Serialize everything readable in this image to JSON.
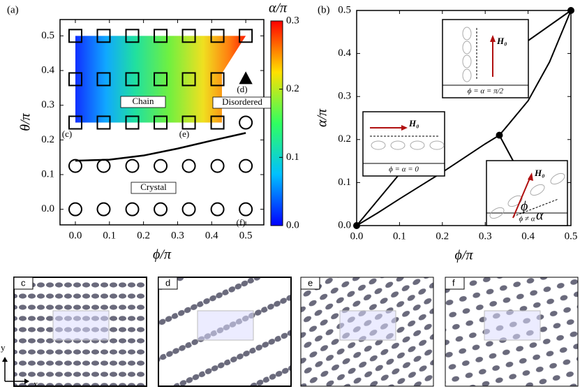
{
  "chart_data": [
    {
      "type": "scatter",
      "panel_label": "(a)",
      "xlabel": "ϕ/π",
      "ylabel": "θ/π",
      "xlim": [
        -0.045,
        0.553
      ],
      "ylim": [
        -0.045,
        0.547
      ],
      "xticks": [
        {
          "value": 0,
          "label": "0.0"
        },
        {
          "value": 0.1,
          "label": "0.1"
        },
        {
          "value": 0.2,
          "label": "0.2"
        },
        {
          "value": 0.3,
          "label": "0.3"
        },
        {
          "value": 0.4,
          "label": "0.4"
        },
        {
          "value": 0.5,
          "label": "0.5"
        }
      ],
      "yticks": [
        {
          "value": 0,
          "label": "0.0"
        },
        {
          "value": 0.1,
          "label": "0.1"
        },
        {
          "value": 0.2,
          "label": "0.2"
        },
        {
          "value": 0.3,
          "label": "0.3"
        },
        {
          "value": 0.4,
          "label": "0.4"
        },
        {
          "value": 0.5,
          "label": "0.5"
        }
      ],
      "series": [
        {
          "marker": "square",
          "color": "#000000",
          "x": [
            0,
            0.083,
            0.167,
            0.25,
            0.333,
            0.417,
            0,
            0.083,
            0.167,
            0.25,
            0.333,
            0.417,
            0,
            0.083,
            0.167,
            0.25,
            0.333,
            0.417,
            0.5
          ],
          "y": [
            0.25,
            0.25,
            0.25,
            0.25,
            0.25,
            0.25,
            0.375,
            0.375,
            0.375,
            0.375,
            0.375,
            0.375,
            0.5,
            0.5,
            0.5,
            0.5,
            0.5,
            0.5,
            0.5
          ]
        },
        {
          "marker": "circle",
          "color": "#000000",
          "x": [
            0.5,
            0,
            0.083,
            0.167,
            0.25,
            0.333,
            0.417,
            0.5,
            0,
            0.083,
            0.167,
            0.25,
            0.333,
            0.417,
            0.5
          ],
          "y": [
            0.25,
            0.125,
            0.125,
            0.125,
            0.125,
            0.125,
            0.125,
            0.125,
            0,
            0,
            0,
            0,
            0,
            0,
            0
          ]
        },
        {
          "marker": "triangle",
          "color": "#000000",
          "x": [
            0.5
          ],
          "y": [
            0.375
          ]
        }
      ],
      "boundary": {
        "x": [
          0,
          0.1,
          0.2,
          0.3,
          0.4,
          0.5
        ],
        "y": [
          0.14,
          0.143,
          0.155,
          0.175,
          0.198,
          0.22
        ]
      },
      "colorbar": {
        "label": "α/π",
        "lim": [
          0,
          0.3
        ],
        "ticks": [
          {
            "value": 0,
            "label": "0.0"
          },
          {
            "value": 0.1,
            "label": "0.1"
          },
          {
            "value": 0.2,
            "label": "0.2"
          },
          {
            "value": 0.3,
            "label": "0.3"
          }
        ]
      },
      "annotations": [
        "Chain",
        "Disordered",
        "Crystal",
        "(c)",
        "(d)",
        "(e)",
        "(f)"
      ]
    },
    {
      "type": "line",
      "panel_label": "(b)",
      "xlabel": "ϕ/π",
      "ylabel": "α/π",
      "xlim": [
        0,
        0.5
      ],
      "ylim": [
        0,
        0.5
      ],
      "xticks": [
        {
          "value": 0,
          "label": "0.0"
        },
        {
          "value": 0.1,
          "label": "0.1"
        },
        {
          "value": 0.2,
          "label": "0.2"
        },
        {
          "value": 0.3,
          "label": "0.3"
        },
        {
          "value": 0.4,
          "label": "0.4"
        },
        {
          "value": 0.5,
          "label": "0.5"
        }
      ],
      "yticks": [
        {
          "value": 0,
          "label": "0.0"
        },
        {
          "value": 0.1,
          "label": "0.1"
        },
        {
          "value": 0.2,
          "label": "0.2"
        },
        {
          "value": 0.3,
          "label": "0.3"
        },
        {
          "value": 0.4,
          "label": "0.4"
        },
        {
          "value": 0.5,
          "label": "0.5"
        }
      ],
      "color": "#000000",
      "x": [
        0,
        0.05,
        0.1,
        0.15,
        0.2,
        0.25,
        0.3,
        0.333,
        0.35,
        0.4,
        0.45,
        0.5
      ],
      "y": [
        0,
        0.03,
        0.062,
        0.093,
        0.124,
        0.157,
        0.19,
        0.21,
        0.23,
        0.29,
        0.38,
        0.5
      ],
      "points": {
        "x": [
          0,
          0.333,
          0.5
        ],
        "y": [
          0,
          0.21,
          0.5
        ]
      },
      "insets": [
        {
          "caption": "ϕ = α = π/2",
          "field": "H₀"
        },
        {
          "caption": "ϕ = α = 0",
          "field": "H₀"
        },
        {
          "caption": "ϕ ≠ α",
          "field": "H₀",
          "angles": [
            "ϕ",
            "α"
          ]
        }
      ]
    }
  ],
  "snapshots": {
    "labels": [
      "c",
      "d",
      "e",
      "f"
    ],
    "axes": [
      "x",
      "y"
    ]
  }
}
